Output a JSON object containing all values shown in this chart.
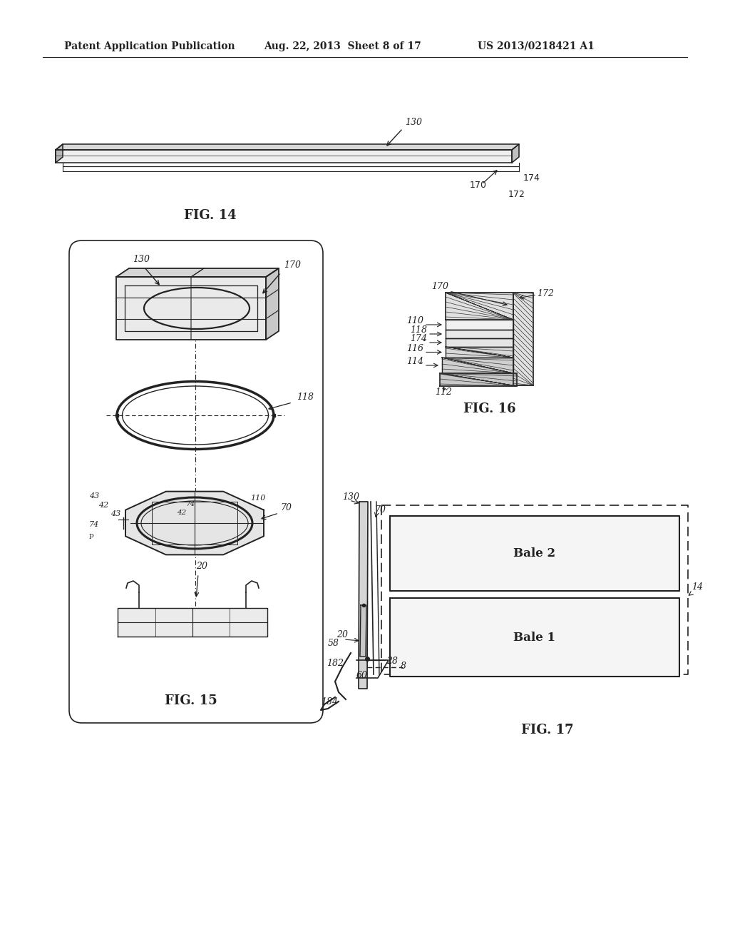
{
  "bg_color": "#ffffff",
  "header_left": "Patent Application Publication",
  "header_center": "Aug. 22, 2013  Sheet 8 of 17",
  "header_right": "US 2013/0218421 A1",
  "fig14_label": "FIG. 14",
  "fig15_label": "FIG. 15",
  "fig16_label": "FIG. 16",
  "fig17_label": "FIG. 17",
  "line_color": "#222222",
  "text_color": "#222222",
  "header_fontsize": 10,
  "label_fontsize": 13,
  "ref_fontsize": 9
}
